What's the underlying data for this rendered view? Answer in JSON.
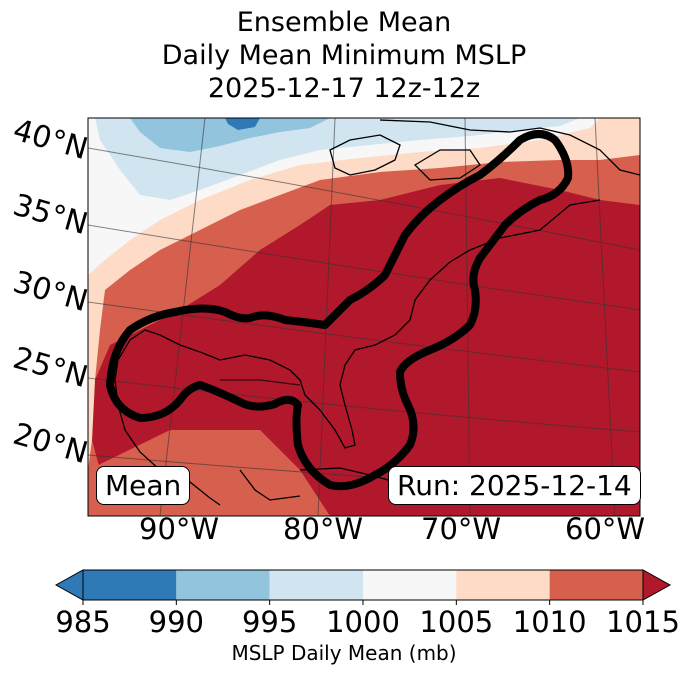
{
  "title": {
    "line1": "Ensemble Mean",
    "line2": "Daily Mean Minimum MSLP",
    "line3": "2025-12-17 12z-12z"
  },
  "map": {
    "lat_labels": [
      "40°N",
      "35°N",
      "30°N",
      "25°N",
      "20°N"
    ],
    "lon_labels": [
      "90°W",
      "80°W",
      "70°W",
      "60°W"
    ],
    "mean_label": "Mean",
    "run_label": "Run: 2025-12-14"
  },
  "colorbar": {
    "label": "MSLP Daily Mean (mb)",
    "ticks": [
      "985",
      "990",
      "995",
      "1000",
      "1005",
      "1010",
      "1015"
    ],
    "levels": [
      985,
      990,
      995,
      1000,
      1005,
      1010,
      1015
    ],
    "colors": [
      "#2f79b6",
      "#92c4de",
      "#d1e5f0",
      "#f7f7f7",
      "#fddbc7",
      "#d6604d",
      "#b2182b"
    ]
  }
}
